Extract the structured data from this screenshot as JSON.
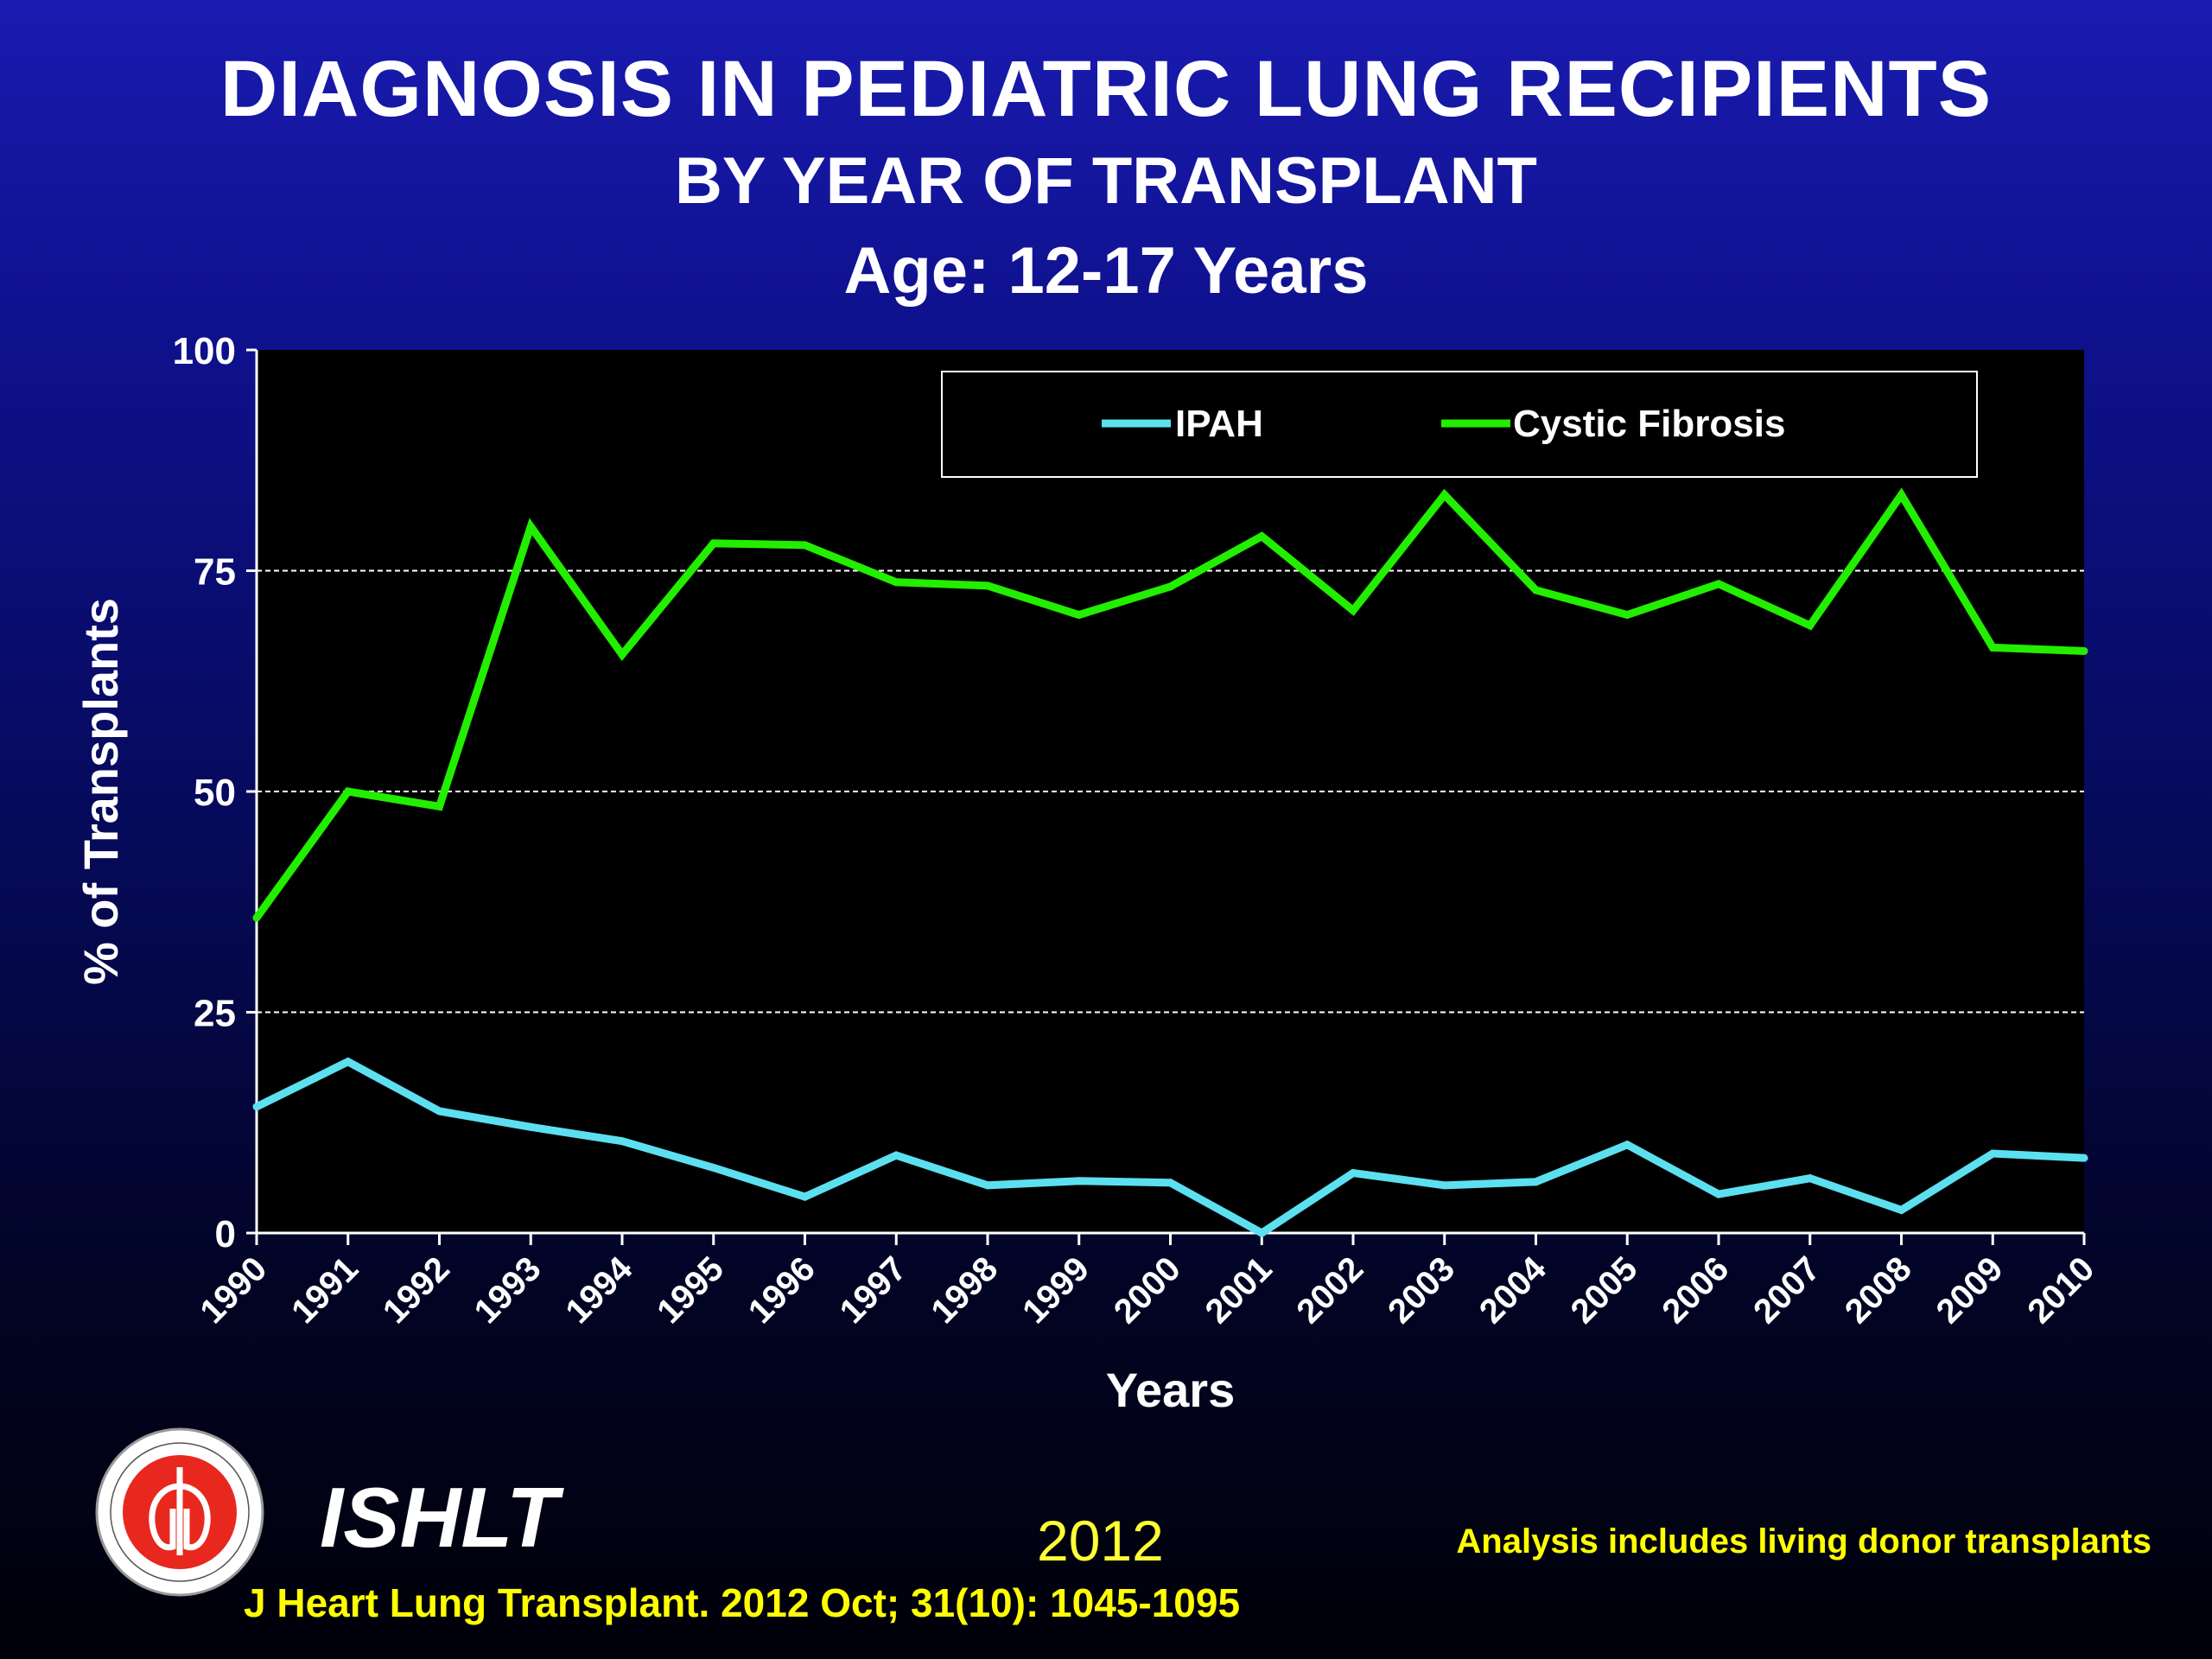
{
  "slide": {
    "title": "DIAGNOSIS IN PEDIATRIC LUNG RECIPIENTS",
    "subtitle": "BY YEAR OF TRANSPLANT",
    "age": "Age: 12-17 Years",
    "org_name": "ISHLT",
    "logo_text": "INTERNATIONAL SOCIETY FOR HEART & LUNG TRANSPLANTATION",
    "year": "2012",
    "note": "Analysis includes living donor transplants",
    "citation": "J Heart Lung Transplant.  2012 Oct; 31(10): 1045-1095"
  },
  "colors": {
    "plot_bg": "#000000",
    "ipah": "#5ce0f0",
    "cf": "#22ee00",
    "text": "#ffffff",
    "footer_text": "#ffff00"
  },
  "chart_data": {
    "type": "line",
    "title": "DIAGNOSIS IN PEDIATRIC LUNG RECIPIENTS",
    "xlabel": "Years",
    "ylabel": "% of Transplants",
    "ylim": [
      0,
      100
    ],
    "yticks": [
      0,
      25,
      50,
      75,
      100
    ],
    "grid": "horizontal dashed",
    "legend_position": "top-right",
    "categories": [
      "1990",
      "1991",
      "1992",
      "1993",
      "1994",
      "1995",
      "1996",
      "1997",
      "1998",
      "1999",
      "2000",
      "2001",
      "2002",
      "2003",
      "2004",
      "2005",
      "2006",
      "2007",
      "2008",
      "2009",
      "2010"
    ],
    "series": [
      {
        "name": "IPAH",
        "values": [
          14.3,
          19.4,
          13.8,
          12,
          10.4,
          7.4,
          4.1,
          8.8,
          5.4,
          5.9,
          5.7,
          0,
          6.8,
          5.4,
          5.8,
          10,
          4.4,
          6.2,
          2.6,
          9,
          8.5
        ]
      },
      {
        "name": "Cystic Fibrosis",
        "values": [
          35.7,
          50,
          48.3,
          80,
          65.5,
          78.1,
          77.9,
          73.7,
          73.3,
          70,
          73.2,
          78.9,
          70.5,
          83.6,
          72.8,
          70,
          73.5,
          68.8,
          83.6,
          66.3,
          65.9
        ]
      }
    ]
  }
}
